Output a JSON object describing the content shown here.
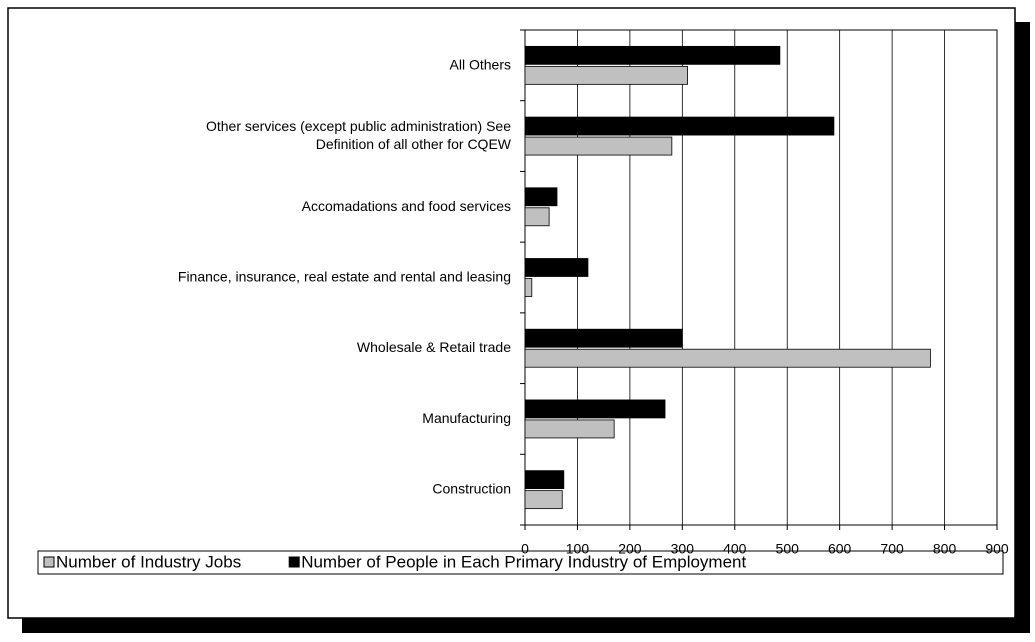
{
  "chart_data": {
    "type": "bar",
    "orientation": "horizontal",
    "categories": [
      "All Others",
      "Other services (except public administration) See\nDefinition of all other for CQEW",
      "Accomadations and food services",
      "Finance, insurance, real estate and rental and leasing",
      "Wholesale & Retail trade",
      "Manufacturing",
      "Construction"
    ],
    "series": [
      {
        "name": "Number of Industry Jobs",
        "color": "#c0c0c0",
        "values": [
          310,
          280,
          46,
          13,
          773,
          170,
          71
        ]
      },
      {
        "name": "Number of People in Each Primary Industry of Employment",
        "color": "#000000",
        "values": [
          486,
          589,
          61,
          120,
          300,
          267,
          74
        ]
      }
    ],
    "xlim": [
      0,
      900
    ],
    "xticks": [
      0,
      100,
      200,
      300,
      400,
      500,
      600,
      700,
      800,
      900
    ],
    "grid": true,
    "legend": "bottom"
  }
}
